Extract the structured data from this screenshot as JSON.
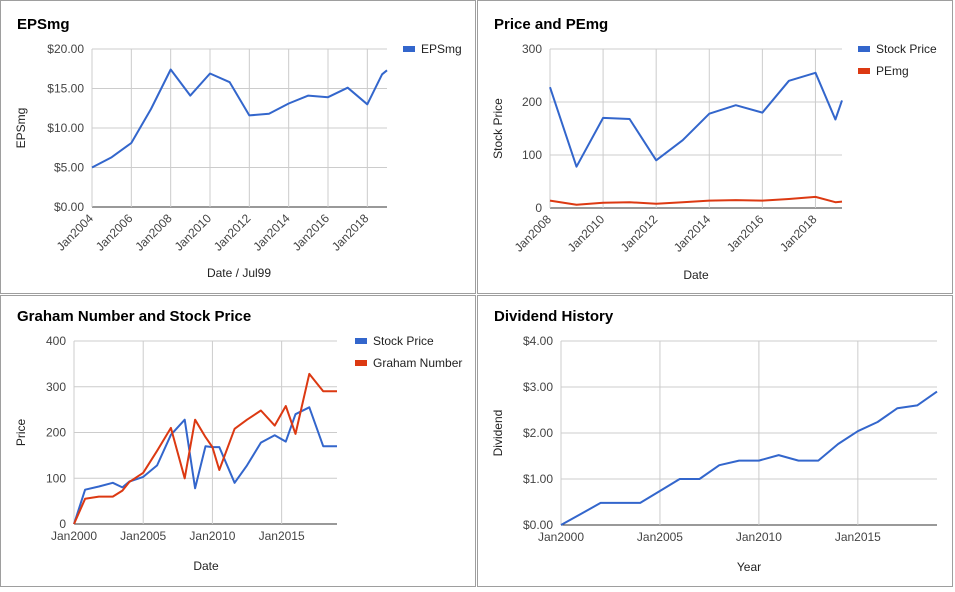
{
  "chart_data": [
    {
      "type": "line",
      "title": "EPSmg",
      "xlabel": "Date / Jul99",
      "ylabel": "EPSmg",
      "xlim": [
        2004,
        2019
      ],
      "ylim": [
        0,
        20
      ],
      "yticks": [
        "$0.00",
        "$5.00",
        "$10.00",
        "$15.00",
        "$20.00"
      ],
      "ytick_values": [
        0,
        5,
        10,
        15,
        20
      ],
      "xticks": [
        "Jan2004",
        "Jan2006",
        "Jan2008",
        "Jan2010",
        "Jan2012",
        "Jan2014",
        "Jan2016",
        "Jan2018"
      ],
      "xtick_values": [
        2004,
        2006,
        2008,
        2010,
        2012,
        2014,
        2016,
        2018
      ],
      "legend": "top-right",
      "grid": true,
      "series": [
        {
          "name": "EPSmg",
          "color": "#3366cc",
          "x": [
            2004,
            2005,
            2006,
            2007,
            2008,
            2009,
            2010,
            2011,
            2012,
            2013,
            2014,
            2015,
            2016,
            2017,
            2018,
            2018.75,
            2019
          ],
          "y": [
            5.0,
            6.3,
            8.1,
            12.4,
            17.4,
            14.1,
            16.9,
            15.8,
            11.6,
            11.8,
            13.1,
            14.1,
            13.9,
            15.1,
            13.0,
            16.8,
            17.3
          ]
        }
      ]
    },
    {
      "type": "line",
      "title": "Price and PEmg",
      "xlabel": "Date",
      "ylabel": "Stock Price",
      "xlim": [
        2008,
        2019
      ],
      "ylim": [
        0,
        300
      ],
      "yticks": [
        "0",
        "100",
        "200",
        "300"
      ],
      "ytick_values": [
        0,
        100,
        200,
        300
      ],
      "xticks": [
        "Jan2008",
        "Jan2010",
        "Jan2012",
        "Jan2014",
        "Jan2016",
        "Jan2018"
      ],
      "xtick_values": [
        2008,
        2010,
        2012,
        2014,
        2016,
        2018
      ],
      "legend": "top-right",
      "grid": true,
      "series": [
        {
          "name": "Stock Price",
          "color": "#3366cc",
          "x": [
            2008,
            2009,
            2010,
            2011,
            2012,
            2013,
            2014,
            2015,
            2016,
            2017,
            2018,
            2018.75,
            2019
          ],
          "y": [
            228,
            78,
            170,
            168,
            90,
            128,
            178,
            194,
            180,
            240,
            255,
            167,
            203
          ]
        },
        {
          "name": "PEmg",
          "color": "#dc3912",
          "x": [
            2008,
            2009,
            2010,
            2011,
            2012,
            2013,
            2014,
            2015,
            2016,
            2017,
            2018,
            2018.75,
            2019
          ],
          "y": [
            14,
            6,
            10,
            11,
            8,
            11,
            14,
            15,
            14,
            17,
            21,
            11,
            12
          ]
        }
      ]
    },
    {
      "type": "line",
      "title": "Graham Number and Stock Price",
      "xlabel": "Date",
      "ylabel": "Price",
      "xlim": [
        2000,
        2019
      ],
      "ylim": [
        0,
        400
      ],
      "yticks": [
        "0",
        "100",
        "200",
        "300",
        "400"
      ],
      "ytick_values": [
        0,
        100,
        200,
        300,
        400
      ],
      "xticks": [
        "Jan2000",
        "Jan2005",
        "Jan2010",
        "Jan2015"
      ],
      "xtick_values": [
        2000,
        2005,
        2010,
        2015
      ],
      "legend": "top-right",
      "grid": true,
      "series": [
        {
          "name": "Stock Price",
          "color": "#3366cc",
          "x": [
            2000,
            2000.8,
            2001.8,
            2002.8,
            2003.5,
            2004,
            2005,
            2006,
            2007,
            2008,
            2008.75,
            2009.5,
            2010,
            2010.5,
            2011.6,
            2012.5,
            2013.5,
            2014.5,
            2015.3,
            2016,
            2017,
            2018,
            2019
          ],
          "y": [
            0,
            75,
            82,
            90,
            80,
            93,
            103,
            128,
            195,
            228,
            78,
            170,
            168,
            168,
            90,
            128,
            178,
            194,
            180,
            240,
            255,
            170,
            170
          ]
        },
        {
          "name": "Graham Number",
          "color": "#dc3912",
          "x": [
            2000,
            2000.8,
            2001.8,
            2002.8,
            2003.5,
            2004,
            2005,
            2006,
            2007,
            2008,
            2008.75,
            2009.5,
            2010,
            2010.5,
            2011.6,
            2012.5,
            2013.5,
            2014.5,
            2015.3,
            2016,
            2017,
            2018,
            2019
          ],
          "y": [
            0,
            55,
            60,
            60,
            73,
            92,
            112,
            160,
            210,
            100,
            228,
            190,
            168,
            118,
            208,
            228,
            248,
            215,
            258,
            197,
            328,
            290,
            290
          ]
        }
      ]
    },
    {
      "type": "line",
      "title": "Dividend History",
      "xlabel": "Year",
      "ylabel": "Dividend",
      "xlim": [
        2000,
        2019
      ],
      "ylim": [
        0,
        4
      ],
      "yticks": [
        "$0.00",
        "$1.00",
        "$2.00",
        "$3.00",
        "$4.00"
      ],
      "ytick_values": [
        0,
        1,
        2,
        3,
        4
      ],
      "xticks": [
        "Jan2000",
        "Jan2005",
        "Jan2010",
        "Jan2015"
      ],
      "xtick_values": [
        2000,
        2005,
        2010,
        2015
      ],
      "legend": "none",
      "grid": true,
      "series": [
        {
          "name": "",
          "color": "#3366cc",
          "x": [
            2000,
            2001,
            2002,
            2003,
            2004,
            2005,
            2006,
            2007,
            2008,
            2009,
            2010,
            2011,
            2012,
            2013,
            2014,
            2015,
            2016,
            2017,
            2018,
            2019
          ],
          "y": [
            0.0,
            0.24,
            0.48,
            0.48,
            0.48,
            0.74,
            1.0,
            1.0,
            1.3,
            1.4,
            1.4,
            1.52,
            1.4,
            1.4,
            1.76,
            2.04,
            2.24,
            2.54,
            2.6,
            2.9
          ]
        }
      ]
    }
  ]
}
